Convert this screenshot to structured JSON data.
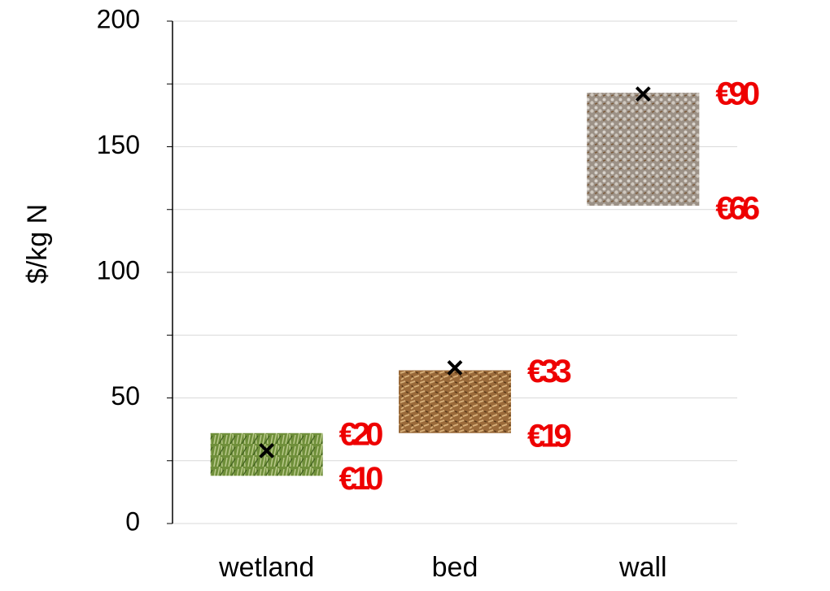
{
  "chart_data": {
    "type": "range_bar",
    "y_label": "$/kg N",
    "categories": [
      "wetland",
      "bed",
      "wall"
    ],
    "low": [
      19,
      36,
      126.5
    ],
    "high": [
      36,
      61,
      171.5
    ],
    "markers": [
      29,
      62,
      171
    ],
    "upper_labels": [
      "€20",
      "€33",
      "€90"
    ],
    "lower_labels": [
      "€10",
      "€19",
      "€66"
    ],
    "label_color": "#ee0000",
    "ylim": [
      0,
      200
    ],
    "yticks": [
      0,
      50,
      100,
      150,
      200
    ],
    "yminor_ticks": [
      25,
      75,
      125,
      175
    ],
    "grid": true
  }
}
